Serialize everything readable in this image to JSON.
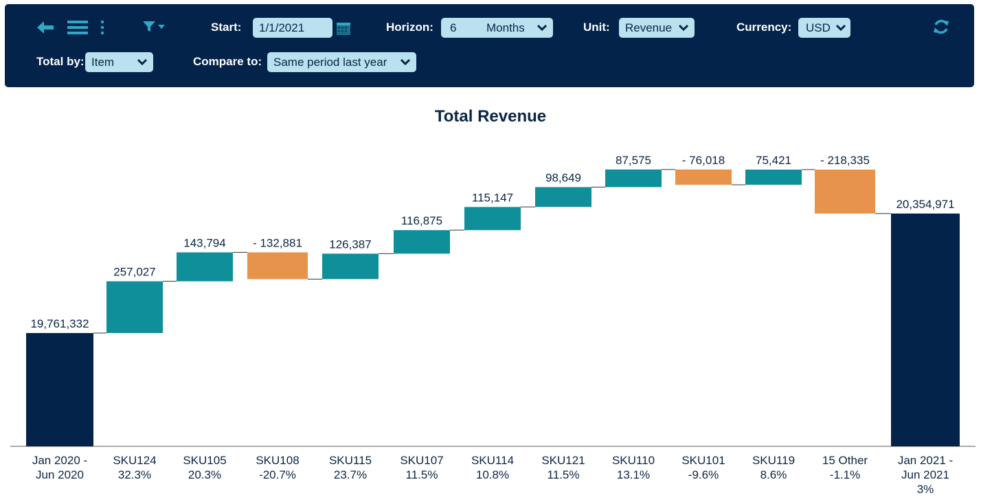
{
  "toolbar": {
    "start_label": "Start:",
    "start_value": "1/1/2021",
    "horizon_label": "Horizon:",
    "horizon_count": "6",
    "horizon_unit": "Months",
    "unit_label": "Unit:",
    "unit_value": "Revenue",
    "currency_label": "Currency:",
    "currency_value": "USD",
    "total_by_label": "Total by:",
    "total_by_value": "Item",
    "compare_label": "Compare to:",
    "compare_value": "Same period last year",
    "icons": [
      "back-arrow-icon",
      "menu-icon",
      "more-vertical-icon",
      "filter-icon",
      "calendar-icon",
      "refresh-icon"
    ]
  },
  "colors": {
    "navy": "#03234a",
    "increase": "#0e8f9a",
    "decrease": "#e8934b",
    "pill": "#b9e1ee"
  },
  "chart_data": {
    "type": "waterfall",
    "title": "Total Revenue",
    "ylim": [
      0,
      20750000
    ],
    "bars": [
      {
        "label_lines": [
          "Jan 2020 -",
          "Jun 2020"
        ],
        "kind": "total",
        "value": 19761332,
        "value_label": "19,761,332"
      },
      {
        "label_lines": [
          "SKU124",
          "32.3%"
        ],
        "kind": "delta",
        "value": 257027,
        "value_label": "257,027"
      },
      {
        "label_lines": [
          "SKU105",
          "20.3%"
        ],
        "kind": "delta",
        "value": 143794,
        "value_label": "143,794"
      },
      {
        "label_lines": [
          "SKU108",
          "-20.7%"
        ],
        "kind": "delta",
        "value": -132881,
        "value_label": "- 132,881"
      },
      {
        "label_lines": [
          "SKU115",
          "23.7%"
        ],
        "kind": "delta",
        "value": 126387,
        "value_label": "126,387"
      },
      {
        "label_lines": [
          "SKU107",
          "11.5%"
        ],
        "kind": "delta",
        "value": 116875,
        "value_label": "116,875"
      },
      {
        "label_lines": [
          "SKU114",
          "10.8%"
        ],
        "kind": "delta",
        "value": 115147,
        "value_label": "115,147"
      },
      {
        "label_lines": [
          "SKU121",
          "11.5%"
        ],
        "kind": "delta",
        "value": 98649,
        "value_label": "98,649"
      },
      {
        "label_lines": [
          "SKU110",
          "13.1%"
        ],
        "kind": "delta",
        "value": 87575,
        "value_label": "87,575"
      },
      {
        "label_lines": [
          "SKU101",
          "-9.6%"
        ],
        "kind": "delta",
        "value": -76018,
        "value_label": "- 76,018"
      },
      {
        "label_lines": [
          "SKU119",
          "8.6%"
        ],
        "kind": "delta",
        "value": 75421,
        "value_label": "75,421"
      },
      {
        "label_lines": [
          "15  Other",
          "-1.1%"
        ],
        "kind": "delta",
        "value": -218335,
        "value_label": "- 218,335"
      },
      {
        "label_lines": [
          "Jan 2021 -",
          "Jun 2021",
          "3%"
        ],
        "kind": "total",
        "value": 20354971,
        "value_label": "20,354,971"
      }
    ]
  }
}
